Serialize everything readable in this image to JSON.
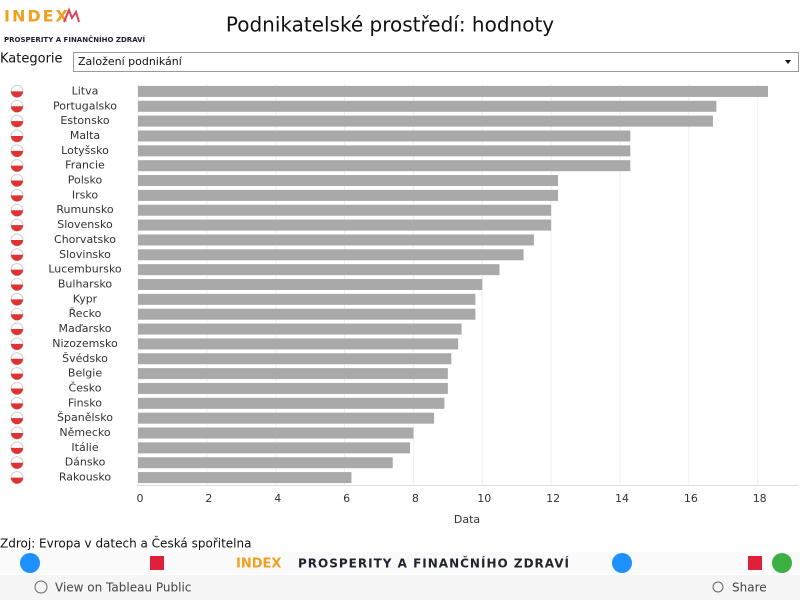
{
  "header": {
    "logo_main": "INDEX",
    "logo_sub": "PROSPERITY A FINANČNÍHO ZDRAVÍ"
  },
  "filter": {
    "label": "Kategorie",
    "selected": "Založení podnikání"
  },
  "chart_data": {
    "type": "bar",
    "orientation": "horizontal",
    "title": "Podnikatelské prostředí: hodnoty",
    "x_label": "Data",
    "categories": [
      "Litva",
      "Portugalsko",
      "Estonsko",
      "Malta",
      "Lotyšsko",
      "Francie",
      "Polsko",
      "Irsko",
      "Rumunsko",
      "Slovensko",
      "Chorvatsko",
      "Slovinsko",
      "Lucembursko",
      "Bulharsko",
      "Kypr",
      "Řecko",
      "Maďarsko",
      "Nizozemsko",
      "Švédsko",
      "Belgie",
      "Česko",
      "Finsko",
      "Španělsko",
      "Německo",
      "Itálie",
      "Dánsko",
      "Rakousko"
    ],
    "values": [
      18.3,
      16.8,
      16.7,
      14.3,
      14.3,
      14.3,
      12.2,
      12.2,
      12.0,
      12.0,
      11.5,
      11.2,
      10.5,
      10.0,
      9.8,
      9.8,
      9.4,
      9.3,
      9.1,
      9.0,
      9.0,
      8.9,
      8.6,
      8.0,
      7.9,
      7.4,
      6.2
    ],
    "color": "#a9a9a9",
    "xlim": [
      0,
      19.2
    ],
    "xticks": [
      0,
      2,
      4,
      6,
      8,
      10,
      12,
      14,
      16,
      18
    ],
    "grid": true
  },
  "source": "Zdroj: Evropa v datech a Česká spořitelna",
  "footer": {
    "banner_main": "INDEX",
    "banner_sub": "PROSPERITY A FINANČNÍHO ZDRAVÍ",
    "view_link": "View on Tableau Public",
    "share": "Share"
  }
}
